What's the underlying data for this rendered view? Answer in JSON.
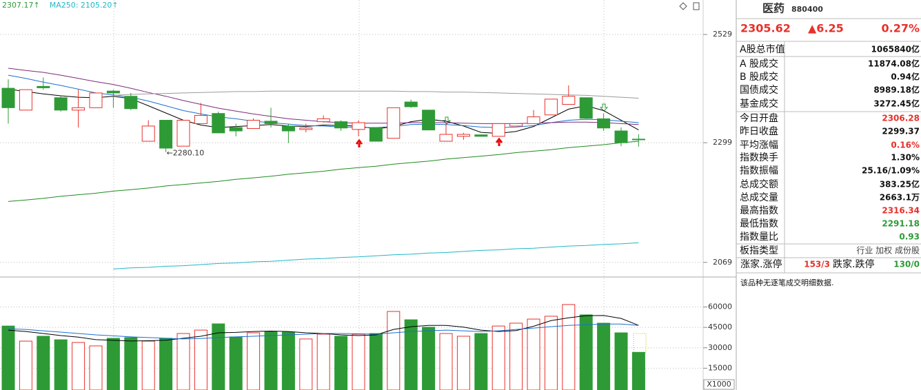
{
  "chart_data": [
    {
      "type": "candlestick",
      "log": true,
      "ylim": [
        2045,
        2607
      ],
      "yticks": [
        2529,
        2299,
        2069
      ],
      "up_color": "#e8302a",
      "down_color": "#2e9a36",
      "legend": [
        {
          "text": "2307.17↑",
          "color": "#2e9a36"
        },
        {
          "text": "MA250: 2105.20↑",
          "color": "#1fb7c7"
        }
      ],
      "annotation": "←2280.10",
      "open": [
        2412,
        2366,
        2416,
        2392,
        2366,
        2371,
        2406,
        2395,
        2302,
        2345,
        2292,
        2338,
        2359,
        2330,
        2328,
        2343,
        2333,
        2326,
        2342,
        2342,
        2326,
        2330,
        2308,
        2383,
        2366,
        2302,
        2312,
        2315,
        2312,
        2333,
        2338,
        2356,
        2378,
        2392,
        2348,
        2323,
        2306.28
      ],
      "high": [
        2431,
        2409,
        2435,
        2395,
        2409,
        2402,
        2409,
        2402,
        2345,
        2345,
        2345,
        2381,
        2363,
        2338,
        2349,
        2371,
        2338,
        2338,
        2355,
        2345,
        2345,
        2330,
        2371,
        2388,
        2366,
        2338,
        2319,
        2315,
        2338,
        2338,
        2366,
        2389,
        2418,
        2392,
        2359,
        2330,
        2316.34
      ],
      "low": [
        2338,
        2366,
        2409,
        2363,
        2330,
        2371,
        2371,
        2366,
        2302,
        2280.1,
        2292,
        2338,
        2319,
        2312,
        2328,
        2330,
        2298,
        2320,
        2340,
        2323,
        2312,
        2302,
        2308,
        2371,
        2325,
        2302,
        2305,
        2312,
        2312,
        2333,
        2338,
        2356,
        2378,
        2349,
        2323,
        2292,
        2291.18
      ],
      "close": [
        2371,
        2409,
        2413,
        2366,
        2371,
        2402,
        2402,
        2369,
        2333,
        2288,
        2345,
        2355,
        2319,
        2323,
        2345,
        2338,
        2323,
        2329,
        2348,
        2329,
        2340,
        2302,
        2371,
        2373,
        2325,
        2316,
        2316,
        2312,
        2338,
        2338,
        2352,
        2389,
        2395,
        2349,
        2329,
        2299,
        2305.62
      ],
      "lines": [
        {
          "color": "#000000",
          "values": [
            2410,
            2405,
            2400,
            2396,
            2393,
            2392,
            2395,
            2390,
            2375,
            2360,
            2345,
            2335,
            2330,
            2332,
            2334,
            2336,
            2333,
            2332,
            2335,
            2334,
            2333,
            2327,
            2332,
            2342,
            2347,
            2343,
            2333,
            2320,
            2318,
            2322,
            2332,
            2350,
            2368,
            2375,
            2365,
            2345,
            2325
          ]
        },
        {
          "color": "#1a6fd0",
          "values": [
            2440,
            2433,
            2425,
            2418,
            2410,
            2402,
            2398,
            2393,
            2385,
            2375,
            2365,
            2358,
            2352,
            2348,
            2343,
            2340,
            2337,
            2334,
            2333,
            2331,
            2330,
            2330,
            2332,
            2336,
            2337,
            2336,
            2334,
            2331,
            2330,
            2331,
            2334,
            2340,
            2345,
            2347,
            2346,
            2343,
            2340
          ]
        },
        {
          "color": "#7a2a7a",
          "values": [
            2455,
            2450,
            2446,
            2440,
            2433,
            2426,
            2420,
            2412,
            2403,
            2395,
            2386,
            2378,
            2370,
            2364,
            2358,
            2353,
            2348,
            2345,
            2342,
            2340,
            2339,
            2339,
            2339,
            2340,
            2340,
            2340,
            2339,
            2338,
            2338,
            2338,
            2339,
            2340,
            2341,
            2341,
            2340,
            2338,
            2336
          ]
        },
        {
          "color": "#9a9a9a",
          "values": [
            null,
            null,
            null,
            null,
            null,
            null,
            2397,
            2399,
            2400,
            2401,
            2402,
            2403,
            2404,
            2405,
            2405,
            2406,
            2406,
            2406,
            2406,
            2406,
            2406,
            2406,
            2406,
            2405,
            2405,
            2404,
            2404,
            2403,
            2402,
            2401,
            2400,
            2399,
            2398,
            2397,
            2395,
            2393,
            2391
          ]
        },
        {
          "color": "#1e8a1e",
          "values": [
            2183,
            2186,
            2189,
            2193,
            2196,
            2199,
            2203,
            2206,
            2209,
            2213,
            2216,
            2219,
            2222,
            2226,
            2229,
            2232,
            2236,
            2239,
            2242,
            2246,
            2249,
            2252,
            2256,
            2259,
            2262,
            2266,
            2269,
            2272,
            2275,
            2279,
            2282,
            2285,
            2289,
            2292,
            2295,
            2299,
            2302
          ]
        },
        {
          "color": "#1fb7c7",
          "values": [
            null,
            null,
            null,
            null,
            null,
            null,
            2057,
            2059,
            2060,
            2062,
            2063,
            2065,
            2067,
            2068,
            2070,
            2071,
            2073,
            2075,
            2076,
            2078,
            2079,
            2081,
            2083,
            2084,
            2086,
            2087,
            2089,
            2091,
            2092,
            2094,
            2095,
            2097,
            2099,
            2100,
            2102,
            2103,
            2105.2
          ]
        }
      ]
    },
    {
      "type": "bar",
      "ylim": [
        0,
        80000
      ],
      "yticks": [
        60000,
        45000,
        30000,
        15000
      ],
      "unit": "X1000",
      "values": [
        46000,
        34900,
        38500,
        35900,
        33900,
        31400,
        37000,
        37500,
        34900,
        37000,
        40500,
        43000,
        47600,
        38000,
        41000,
        42000,
        41500,
        36500,
        40000,
        38500,
        40000,
        40500,
        56700,
        50600,
        45100,
        40500,
        38500,
        40500,
        46000,
        48100,
        51100,
        53200,
        61800,
        54200,
        48100,
        41000,
        26631
      ],
      "lines": [
        {
          "color": "#000000",
          "values": [
            43000,
            42000,
            40500,
            39000,
            37800,
            36000,
            35500,
            35000,
            35200,
            35600,
            37000,
            38500,
            41000,
            41300,
            42000,
            42300,
            42000,
            41000,
            40500,
            39500,
            39000,
            39500,
            43500,
            45500,
            46500,
            46500,
            45200,
            43000,
            42000,
            42700,
            45800,
            50000,
            52000,
            53600,
            53700,
            51600,
            46500
          ]
        },
        {
          "color": "#1a6fd0",
          "values": [
            44000,
            43500,
            42500,
            41500,
            40500,
            39500,
            38800,
            38000,
            37500,
            37000,
            36500,
            36800,
            37500,
            38000,
            38500,
            39000,
            39500,
            40000,
            40500,
            40500,
            40300,
            40000,
            41000,
            42000,
            42500,
            43000,
            42500,
            42000,
            42500,
            43500,
            44500,
            45500,
            46500,
            47000,
            47500,
            47500,
            46500
          ]
        }
      ]
    }
  ],
  "panel": {
    "title": "医药",
    "code": "880400",
    "price": "2305.62",
    "change": "▲6.25",
    "pct": "0.27%",
    "rows": [
      {
        "label": "A股总市值",
        "value": "1065840亿"
      },
      {
        "label": "A 股成交",
        "value": "11874.08亿"
      },
      {
        "label": "B 股成交",
        "value": "0.94亿"
      },
      {
        "label": "国债成交",
        "value": "8989.18亿"
      },
      {
        "label": "基金成交",
        "value": "3272.45亿"
      },
      {
        "label": "今日开盘",
        "value": "2306.28",
        "color": "#e8302a"
      },
      {
        "label": "昨日收盘",
        "value": "2299.37"
      },
      {
        "label": "平均涨幅",
        "value": "0.16%",
        "color": "#e8302a"
      },
      {
        "label": "指数换手",
        "value": "1.30%"
      },
      {
        "label": "指数振幅",
        "value": "25.16/1.09%"
      },
      {
        "label": "总成交额",
        "value": "383.25亿"
      },
      {
        "label": "总成交量",
        "value": "2663.1万"
      },
      {
        "label": "最高指数",
        "value": "2316.34",
        "color": "#e8302a"
      },
      {
        "label": "最低指数",
        "value": "2291.18",
        "color": "#2e9a36"
      },
      {
        "label": "指数量比",
        "value": "0.93",
        "color": "#2e9a36"
      },
      {
        "label": "板指类型",
        "value": "行业 加权 成份股"
      }
    ],
    "breadth": {
      "up_label": "涨家.涨停",
      "up_value": "153/3",
      "down_label": "跌家.跌停",
      "down_value": "130/0"
    },
    "note": "该品种无逐笔成交明细数据."
  }
}
